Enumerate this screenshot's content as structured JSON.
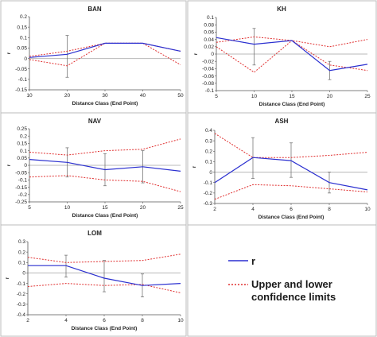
{
  "colors": {
    "r": "#2a2fd0",
    "limits": "#e03030",
    "errorbar": "#666666",
    "frame": "#555555",
    "panel_border": "#bbbbbb",
    "zero_line": "#b8b8b8"
  },
  "legend": {
    "r_label": "r",
    "limits_line1": "Upper and lower",
    "limits_line2": "confidence limits"
  },
  "chart_data": [
    {
      "type": "line",
      "title": "BAN",
      "xlabel": "Distance Class (End Point)",
      "ylabel": "r",
      "x": [
        10,
        20,
        30,
        40,
        50
      ],
      "xlim": [
        10,
        50
      ],
      "xticks": [
        10,
        20,
        30,
        40,
        50
      ],
      "ylim": [
        -0.15,
        0.2
      ],
      "yticks": [
        -0.15,
        -0.1,
        -0.05,
        0,
        0.05,
        0.1,
        0.15,
        0.2
      ],
      "ytick_labels": [
        "-0.15",
        "-0.1",
        "-0.05",
        "0",
        "0.05",
        "0.1",
        "0.15",
        "0.2"
      ],
      "series": [
        {
          "values": [
            0.005,
            0.02,
            0.073,
            0.073,
            0.035
          ]
        },
        {
          "values": [
            0.01,
            0.035,
            0.073,
            0.073,
            0.035
          ]
        },
        {
          "values": [
            -0.005,
            -0.035,
            0.073,
            0.073,
            -0.03
          ]
        }
      ],
      "error_bars": [
        {
          "x": 20,
          "low": -0.09,
          "high": 0.11
        }
      ]
    },
    {
      "type": "line",
      "title": "KH",
      "xlabel": "Distance Class (End Point)",
      "ylabel": "r",
      "x": [
        5,
        10,
        15,
        20,
        25
      ],
      "xlim": [
        5,
        25
      ],
      "xticks": [
        5,
        10,
        15,
        20,
        25
      ],
      "ylim": [
        -0.1,
        0.1
      ],
      "yticks": [
        -0.1,
        -0.08,
        -0.06,
        -0.04,
        -0.02,
        0,
        0.02,
        0.04,
        0.06,
        0.08,
        0.1
      ],
      "ytick_labels": [
        "-0.1",
        "-0.08",
        "-0.06",
        "-0.04",
        "-0.02",
        "0",
        "0.02",
        "0.04",
        "0.06",
        "0.08",
        "0.1"
      ],
      "series": [
        {
          "values": [
            0.045,
            0.027,
            0.037,
            -0.045,
            -0.028
          ]
        },
        {
          "values": [
            0.032,
            0.047,
            0.037,
            0.02,
            0.04
          ]
        },
        {
          "values": [
            0.02,
            -0.05,
            0.037,
            -0.03,
            -0.045
          ]
        }
      ],
      "error_bars": [
        {
          "x": 10,
          "low": -0.03,
          "high": 0.07
        },
        {
          "x": 20,
          "low": -0.07,
          "high": -0.02
        }
      ]
    },
    {
      "type": "line",
      "title": "NAV",
      "xlabel": "Distance Class (End Point)",
      "ylabel": "r",
      "x": [
        5,
        10,
        15,
        20,
        25
      ],
      "xlim": [
        5,
        25
      ],
      "xticks": [
        5,
        10,
        15,
        20,
        25
      ],
      "ylim": [
        -0.25,
        0.25
      ],
      "yticks": [
        -0.25,
        -0.2,
        -0.15,
        -0.1,
        -0.05,
        0,
        0.05,
        0.1,
        0.15,
        0.2,
        0.25
      ],
      "ytick_labels": [
        "-0.25",
        "-0.2",
        "-0.15",
        "-0.1",
        "-0.05",
        "0",
        "0.05",
        "0.1",
        "0.15",
        "0.2",
        "0.25"
      ],
      "series": [
        {
          "values": [
            0.04,
            0.02,
            -0.03,
            -0.01,
            -0.04
          ]
        },
        {
          "values": [
            0.09,
            0.07,
            0.1,
            0.11,
            0.18
          ]
        },
        {
          "values": [
            -0.08,
            -0.07,
            -0.1,
            -0.11,
            -0.18
          ]
        }
      ],
      "error_bars": [
        {
          "x": 10,
          "low": -0.08,
          "high": 0.12
        },
        {
          "x": 15,
          "low": -0.14,
          "high": 0.08
        },
        {
          "x": 20,
          "low": -0.12,
          "high": 0.1
        }
      ]
    },
    {
      "type": "line",
      "title": "ASH",
      "xlabel": "Distance Class (End Point)",
      "ylabel": "r",
      "x": [
        2,
        4,
        6,
        8,
        10
      ],
      "xlim": [
        2,
        10
      ],
      "xticks": [
        2,
        4,
        6,
        8,
        10
      ],
      "ylim": [
        -0.3,
        0.4
      ],
      "yticks": [
        -0.3,
        -0.2,
        -0.1,
        0,
        0.1,
        0.2,
        0.3,
        0.4
      ],
      "ytick_labels": [
        "-0.3",
        "-0.2",
        "-0.1",
        "0",
        "0.1",
        "0.2",
        "0.3",
        "0.4"
      ],
      "series": [
        {
          "values": [
            -0.1,
            0.14,
            0.11,
            -0.1,
            -0.17
          ]
        },
        {
          "values": [
            0.37,
            0.14,
            0.14,
            0.16,
            0.19
          ]
        },
        {
          "values": [
            -0.26,
            -0.12,
            -0.13,
            -0.16,
            -0.19
          ]
        }
      ],
      "error_bars": [
        {
          "x": 4,
          "low": -0.06,
          "high": 0.33
        },
        {
          "x": 6,
          "low": -0.05,
          "high": 0.28
        },
        {
          "x": 8,
          "low": -0.2,
          "high": 0.0
        }
      ]
    },
    {
      "type": "line",
      "title": "LOM",
      "xlabel": "Distance Class (End Point)",
      "ylabel": "r",
      "x": [
        2,
        4,
        6,
        8,
        10
      ],
      "xlim": [
        2,
        10
      ],
      "xticks": [
        2,
        4,
        6,
        8,
        10
      ],
      "ylim": [
        -0.4,
        0.3
      ],
      "yticks": [
        -0.4,
        -0.3,
        -0.2,
        -0.1,
        0,
        0.1,
        0.2,
        0.3
      ],
      "ytick_labels": [
        "-0.4",
        "-0.3",
        "-0.2",
        "-0.1",
        "0",
        "0.1",
        "0.2",
        "0.3"
      ],
      "series": [
        {
          "values": [
            0.07,
            0.07,
            -0.05,
            -0.12,
            -0.1
          ]
        },
        {
          "values": [
            0.15,
            0.1,
            0.11,
            0.12,
            0.18
          ]
        },
        {
          "values": [
            -0.13,
            -0.1,
            -0.12,
            -0.11,
            -0.19
          ]
        }
      ],
      "error_bars": [
        {
          "x": 4,
          "low": -0.04,
          "high": 0.17
        },
        {
          "x": 6,
          "low": -0.18,
          "high": 0.12
        },
        {
          "x": 8,
          "low": -0.23,
          "high": -0.01
        }
      ]
    }
  ]
}
